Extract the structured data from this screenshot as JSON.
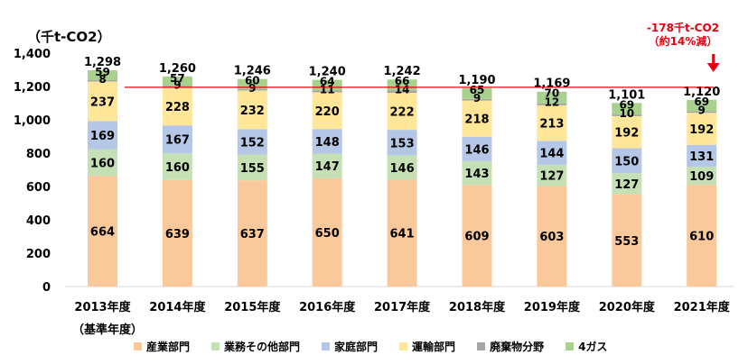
{
  "chart_data": {
    "type": "bar",
    "stacked": true,
    "unit_label": "（千t-CO2）",
    "categories": [
      "2013年度",
      "2014年度",
      "2015年度",
      "2016年度",
      "2017年度",
      "2018年度",
      "2019年度",
      "2020年度",
      "2021年度"
    ],
    "base_year_note": "（基準年度）",
    "ylim": [
      0,
      1400
    ],
    "yticks": [
      "0",
      "200",
      "400",
      "600",
      "800",
      "1,000",
      "1,200",
      "1,400"
    ],
    "ytick_values": [
      0,
      200,
      400,
      600,
      800,
      1000,
      1200,
      1400
    ],
    "grid": false,
    "legend_position": "bottom",
    "series": [
      {
        "name": "産業部門",
        "color": "#f9c89b",
        "values": [
          664,
          639,
          637,
          650,
          641,
          609,
          603,
          553,
          610
        ]
      },
      {
        "name": "業務その他部門",
        "color": "#c5e0b4",
        "values": [
          160,
          160,
          155,
          147,
          146,
          143,
          127,
          127,
          109
        ]
      },
      {
        "name": "家庭部門",
        "color": "#b4c7e7",
        "values": [
          169,
          167,
          152,
          148,
          153,
          146,
          144,
          150,
          131
        ]
      },
      {
        "name": "運輸部門",
        "color": "#ffe699",
        "values": [
          237,
          228,
          232,
          220,
          222,
          218,
          213,
          192,
          192
        ]
      },
      {
        "name": "廃棄物分野",
        "color": "#a6a6a6",
        "values": [
          8,
          9,
          9,
          11,
          14,
          9,
          12,
          10,
          9
        ]
      },
      {
        "name": "4ガス",
        "color": "#a9d18e",
        "values": [
          59,
          57,
          60,
          64,
          66,
          65,
          70,
          69,
          69
        ]
      }
    ],
    "totals": [
      1298,
      1260,
      1246,
      1240,
      1242,
      1190,
      1169,
      1101,
      1120
    ],
    "total_labels": [
      "1,298",
      "1,260",
      "1,246",
      "1,240",
      "1,242",
      "1,190",
      "1,169",
      "1,101",
      "1,120"
    ],
    "reference_line": {
      "value": 1298,
      "color": "#e60012"
    },
    "annotation": {
      "line1": "-178千t-CO2",
      "line2": "（約14%減）",
      "color": "#e60012"
    }
  }
}
